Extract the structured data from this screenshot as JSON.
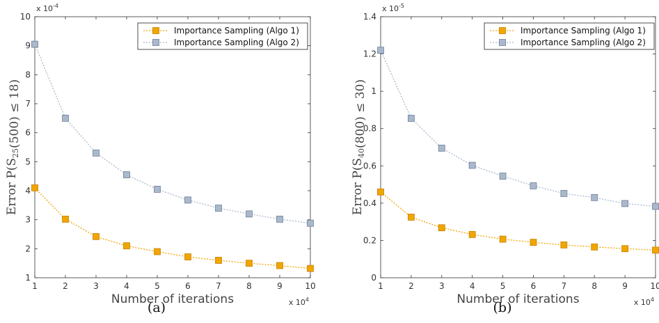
{
  "chart_data": [
    {
      "type": "line",
      "caption": "(a)",
      "xlabel": "Number of iterations",
      "x_multiplier": "x 10^4",
      "ylabel": "Error P(S_25(500) ≤ 18)",
      "y_multiplier": "x 10^-4",
      "x": [
        1,
        2,
        3,
        4,
        5,
        6,
        7,
        8,
        9,
        10
      ],
      "xlim": [
        1,
        10
      ],
      "ylim": [
        1,
        10
      ],
      "yticks": [
        1,
        2,
        3,
        4,
        5,
        6,
        7,
        8,
        9,
        10
      ],
      "ytick_labels": [
        "1",
        "2",
        "3",
        "4",
        "5",
        "6",
        "7",
        "8",
        "9",
        "10"
      ],
      "grid": false,
      "legend_position": "top-right",
      "series": [
        {
          "name": "Importance Sampling (Algo 1)",
          "color": "#f0a500",
          "marker_edge": "#c98200",
          "values": [
            4.1,
            3.02,
            2.42,
            2.1,
            1.9,
            1.72,
            1.6,
            1.5,
            1.42,
            1.32
          ]
        },
        {
          "name": "Importance Sampling (Algo 2)",
          "color": "#aab8cc",
          "marker_edge": "#6f7f99",
          "values": [
            9.05,
            6.5,
            5.3,
            4.55,
            4.05,
            3.68,
            3.4,
            3.2,
            3.02,
            2.88
          ]
        }
      ]
    },
    {
      "type": "line",
      "caption": "(b)",
      "xlabel": "Number of iterations",
      "x_multiplier": "x 10^4",
      "ylabel": "Error P(S_40(800) ≤ 30)",
      "y_multiplier": "x 10^-5",
      "x": [
        1,
        2,
        3,
        4,
        5,
        6,
        7,
        8,
        9,
        10
      ],
      "xlim": [
        1,
        10
      ],
      "ylim": [
        0,
        1.4
      ],
      "yticks": [
        0,
        0.2,
        0.4,
        0.6,
        0.8,
        1.0,
        1.2,
        1.4
      ],
      "ytick_labels": [
        "0",
        "0.2",
        "0.4",
        "0.6",
        "0.8",
        "1",
        "1.2",
        "1.4"
      ],
      "grid": false,
      "legend_position": "top-right",
      "series": [
        {
          "name": "Importance Sampling (Algo 1)",
          "color": "#f0a500",
          "marker_edge": "#c98200",
          "values": [
            0.46,
            0.325,
            0.268,
            0.232,
            0.207,
            0.19,
            0.176,
            0.165,
            0.156,
            0.148
          ]
        },
        {
          "name": "Importance Sampling (Algo 2)",
          "color": "#aab8cc",
          "marker_edge": "#6f7f99",
          "values": [
            1.22,
            0.855,
            0.695,
            0.603,
            0.545,
            0.493,
            0.452,
            0.43,
            0.398,
            0.383
          ]
        }
      ]
    }
  ]
}
